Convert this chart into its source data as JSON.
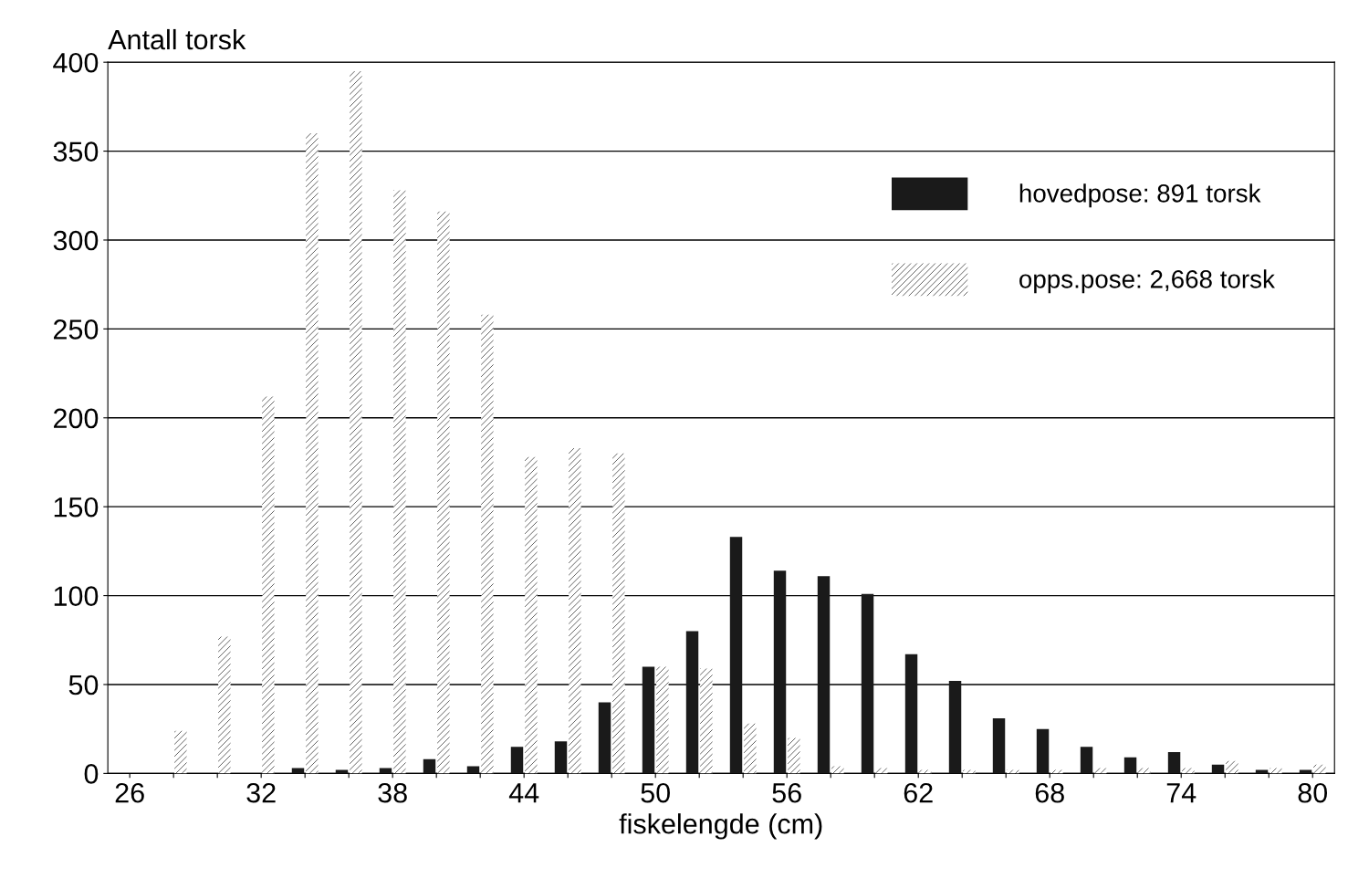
{
  "chart_data": {
    "type": "bar",
    "ylabel": "Antall torsk",
    "xlabel": "fiskelengde (cm)",
    "categories": [
      "26",
      null,
      null,
      "32",
      null,
      null,
      "38",
      null,
      null,
      "44",
      null,
      null,
      "50",
      null,
      null,
      "56",
      null,
      null,
      "62",
      null,
      null,
      "68",
      null,
      null,
      "74",
      null,
      null,
      "80"
    ],
    "series": [
      {
        "name": "hovedpose: 891 torsk",
        "color": "#1a1a1a",
        "values": [
          0,
          0,
          0,
          0,
          3,
          2,
          3,
          8,
          4,
          15,
          18,
          40,
          60,
          80,
          133,
          114,
          111,
          101,
          67,
          52,
          31,
          25,
          15,
          9,
          12,
          5,
          2,
          2
        ]
      },
      {
        "name": "opps.pose: 2,668 torsk",
        "color": "#ffffff",
        "values": [
          0,
          24,
          77,
          212,
          360,
          395,
          328,
          316,
          258,
          178,
          183,
          180,
          60,
          59,
          28,
          20,
          4,
          3,
          2,
          2,
          2,
          2,
          3,
          3,
          3,
          7,
          3,
          5
        ]
      }
    ],
    "ylim": [
      0,
      400
    ],
    "yticks": [
      0,
      50,
      100,
      150,
      200,
      250,
      300,
      350,
      400
    ],
    "grid": "y",
    "legend": "top right"
  }
}
